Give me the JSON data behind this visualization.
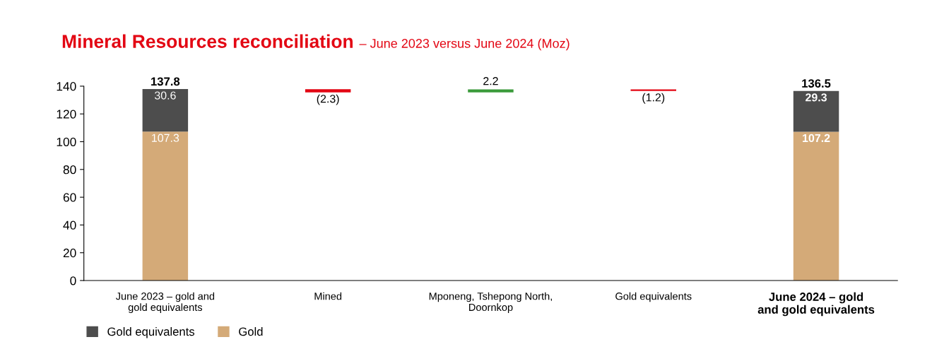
{
  "chart_data": {
    "type": "bar",
    "title": "Mineral Resources reconciliation",
    "subtitle": "– June 2023 versus June 2024 (Moz)",
    "categories": [
      "June 2023 – gold and\ngold equivalents",
      "Mined",
      "Mponeng, Tshepong North,\nDoornkop",
      "Gold equivalents",
      "June 2024 – gold\nand gold equivalents"
    ],
    "stacked": true,
    "series": [
      {
        "name": "Gold",
        "color": "#d4aa78",
        "values": [
          107.3,
          null,
          null,
          null,
          107.2
        ],
        "value_labels": [
          "107.3",
          null,
          null,
          null,
          "107.2"
        ]
      },
      {
        "name": "Gold equivalents",
        "color": "#4d4d4d",
        "values": [
          30.6,
          null,
          null,
          null,
          29.3
        ],
        "value_labels": [
          "30.6",
          null,
          null,
          null,
          "29.3"
        ]
      },
      {
        "colors": [
          "#e30613",
          "#e30613",
          "#3a9a3a",
          "#e30613",
          "#e30613"
        ],
        "base": [
          null,
          137.8,
          135.5,
          137.7,
          null
        ],
        "values": [
          null,
          -2.3,
          2.2,
          -1.2,
          null
        ],
        "value_labels": [
          null,
          "(2.3)",
          "2.2",
          "(1.2)",
          null
        ]
      }
    ],
    "totals": [
      "137.8",
      null,
      null,
      null,
      "136.5"
    ],
    "ylim": [
      0,
      140
    ],
    "yticks": [
      0,
      20,
      40,
      60,
      80,
      100,
      120,
      140
    ],
    "grid": false,
    "legend": "bottom left"
  }
}
